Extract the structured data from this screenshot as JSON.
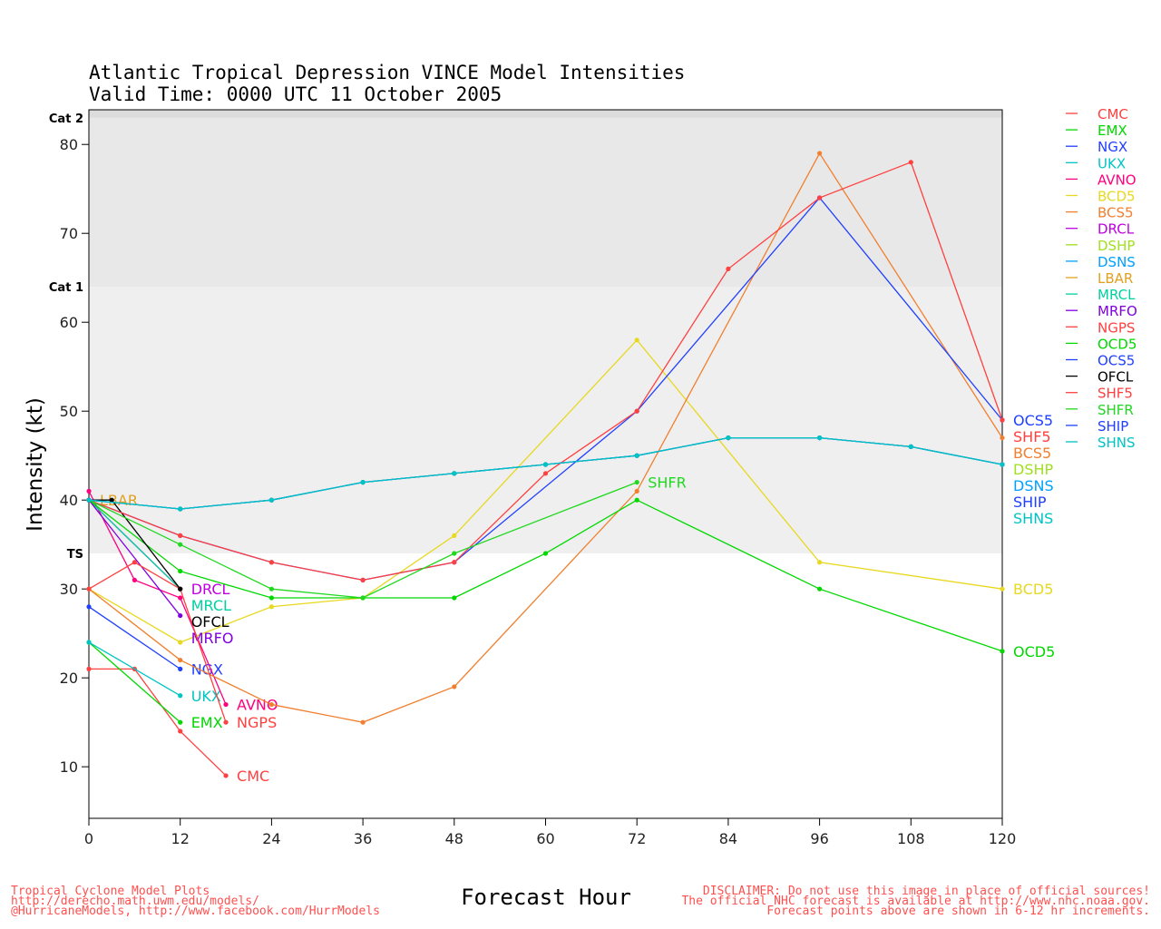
{
  "chart_data": {
    "type": "line",
    "title": "Atlantic Tropical Depression VINCE Model Intensities",
    "subtitle": "Valid Time: 0000 UTC 11 October 2005",
    "xlabel": "Forecast Hour",
    "ylabel": "Intensity (kt)",
    "xlim": [
      0,
      120
    ],
    "ylim": [
      4.2,
      83.9
    ],
    "xticks": [
      0,
      12,
      24,
      36,
      48,
      60,
      72,
      84,
      96,
      108,
      120
    ],
    "yticks": [
      10,
      20,
      30,
      40,
      50,
      60,
      70,
      80
    ],
    "bands": [
      {
        "label": "TS",
        "value": 34,
        "color": "#efefef"
      },
      {
        "label": "Cat 1",
        "value": 64,
        "color": "#e8e8e8"
      },
      {
        "label": "Cat 2",
        "value": 83,
        "color": "#dcdcdc"
      }
    ],
    "legend_position": "right",
    "series": [
      {
        "name": "CMC",
        "color": "#ff4040",
        "x": [
          0,
          6,
          12,
          18
        ],
        "y": [
          21,
          21,
          14,
          9
        ]
      },
      {
        "name": "EMX",
        "color": "#00d800",
        "x": [
          0,
          12
        ],
        "y": [
          24,
          15
        ]
      },
      {
        "name": "NGX",
        "color": "#2040ff",
        "x": [
          0,
          12
        ],
        "y": [
          28,
          21
        ]
      },
      {
        "name": "UKX",
        "color": "#00c4c4",
        "x": [
          0,
          12
        ],
        "y": [
          24,
          18
        ]
      },
      {
        "name": "AVNO",
        "color": "#ff0080",
        "x": [
          0,
          6,
          12,
          18
        ],
        "y": [
          41,
          31,
          29,
          17
        ]
      },
      {
        "name": "BCD5",
        "color": "#e8d820",
        "x": [
          0,
          12,
          24,
          36,
          48,
          72,
          96,
          120
        ],
        "y": [
          30,
          24,
          28,
          29,
          36,
          58,
          33,
          30
        ]
      },
      {
        "name": "BCS5",
        "color": "#f08030",
        "x": [
          0,
          12,
          24,
          36,
          48,
          72,
          96,
          120
        ],
        "y": [
          30,
          22,
          17,
          15,
          19,
          41,
          79,
          47
        ]
      },
      {
        "name": "DRCL",
        "color": "#c000e0",
        "x": [
          0,
          12
        ],
        "y": [
          40,
          30
        ]
      },
      {
        "name": "DSHP",
        "color": "#a0e020",
        "x": [
          0,
          12,
          24,
          36,
          48,
          60,
          72,
          84,
          96,
          108,
          120
        ],
        "y": [
          40,
          39,
          40,
          42,
          43,
          44,
          45,
          47,
          47,
          46,
          44
        ]
      },
      {
        "name": "DSNS",
        "color": "#00a0ff",
        "x": [
          0,
          12,
          24,
          36,
          48,
          60,
          72,
          84,
          96,
          108,
          120
        ],
        "y": [
          40,
          39,
          40,
          42,
          43,
          44,
          45,
          47,
          47,
          46,
          44
        ]
      },
      {
        "name": "LBAR",
        "color": "#e0a020",
        "x": [
          0
        ],
        "y": [
          40
        ]
      },
      {
        "name": "MRCL",
        "color": "#00d0a0",
        "x": [
          0,
          12
        ],
        "y": [
          40,
          30
        ]
      },
      {
        "name": "MRFO",
        "color": "#8000e0",
        "x": [
          0,
          12
        ],
        "y": [
          40,
          27
        ]
      },
      {
        "name": "NGPS",
        "color": "#ff4040",
        "x": [
          0,
          6,
          12,
          18
        ],
        "y": [
          30,
          33,
          30,
          15
        ]
      },
      {
        "name": "OCD5",
        "color": "#00d800",
        "x": [
          0,
          12,
          24,
          36,
          48,
          60,
          72,
          96,
          120
        ],
        "y": [
          40,
          32,
          29,
          29,
          29,
          34,
          40,
          30,
          23
        ]
      },
      {
        "name": "OCS5",
        "color": "#2040ff",
        "x": [
          0,
          12,
          24,
          36,
          48,
          72,
          96,
          120
        ],
        "y": [
          40,
          36,
          33,
          31,
          33,
          50,
          74,
          49
        ]
      },
      {
        "name": "OFCL",
        "color": "#000000",
        "x": [
          0,
          3,
          12
        ],
        "y": [
          40,
          40,
          30
        ]
      },
      {
        "name": "SHF5",
        "color": "#ff4040",
        "x": [
          0,
          12,
          24,
          36,
          48,
          60,
          72,
          84,
          96,
          108,
          120
        ],
        "y": [
          40,
          36,
          33,
          31,
          33,
          43,
          50,
          66,
          74,
          78,
          49
        ]
      },
      {
        "name": "SHFR",
        "color": "#20d820",
        "x": [
          0,
          12,
          24,
          36,
          48,
          72
        ],
        "y": [
          40,
          35,
          30,
          29,
          34,
          42
        ]
      },
      {
        "name": "SHIP",
        "color": "#2040ff",
        "x": [
          0,
          12,
          24,
          36,
          48,
          60,
          72,
          84,
          96,
          108,
          120
        ],
        "y": [
          40,
          39,
          40,
          42,
          43,
          44,
          45,
          47,
          47,
          46,
          44
        ]
      },
      {
        "name": "SHNS",
        "color": "#00c4c4",
        "x": [
          0,
          12,
          24,
          36,
          48,
          60,
          72,
          84,
          96,
          108,
          120
        ],
        "y": [
          40,
          39,
          40,
          42,
          43,
          44,
          45,
          47,
          47,
          46,
          44
        ]
      }
    ]
  },
  "footer": {
    "left": [
      "Tropical Cyclone Model Plots",
      "http://derecho.math.uwm.edu/models/",
      "@HurricaneModels, http://www.facebook.com/HurrModels"
    ],
    "right": [
      "DISCLAIMER: Do not use this image in place of official sources!",
      "The official NHC forecast is available at http://www.nhc.noaa.gov.",
      "Forecast points above are shown in 6-12 hr increments."
    ]
  }
}
